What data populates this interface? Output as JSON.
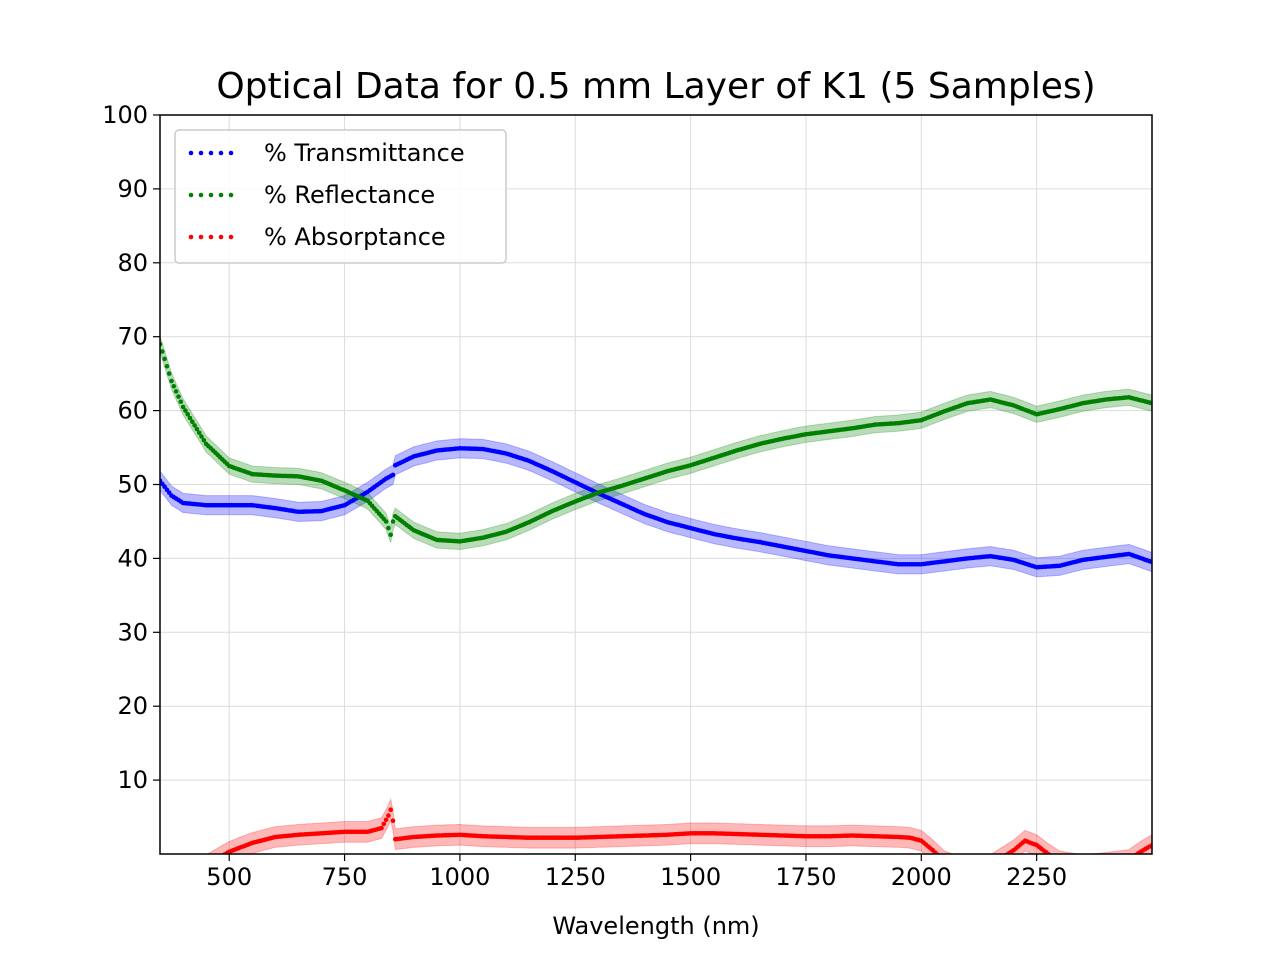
{
  "chart_data": {
    "type": "line",
    "title": "Optical Data for 0.5 mm Layer of K1 (5 Samples)",
    "xlabel": "Wavelength (nm)",
    "ylabel": "",
    "xlim": [
      350,
      2500
    ],
    "ylim": [
      0,
      100
    ],
    "x_ticks": [
      500,
      750,
      1000,
      1250,
      1500,
      1750,
      2000,
      2250
    ],
    "y_ticks": [
      10,
      20,
      30,
      40,
      50,
      60,
      70,
      80,
      90,
      100
    ],
    "grid": true,
    "legend_position": "top-left",
    "series": [
      {
        "name": "% Transmittance",
        "color": "#0000ff",
        "band_halfwidth": 1.3,
        "x": [
          350,
          375,
          400,
          450,
          500,
          550,
          600,
          650,
          700,
          750,
          800,
          840,
          855,
          860,
          900,
          950,
          1000,
          1050,
          1100,
          1150,
          1200,
          1250,
          1300,
          1350,
          1400,
          1450,
          1500,
          1550,
          1600,
          1650,
          1700,
          1750,
          1800,
          1850,
          1900,
          1950,
          2000,
          2050,
          2100,
          2150,
          2200,
          2250,
          2300,
          2350,
          2400,
          2450,
          2500
        ],
        "y": [
          50.5,
          48.5,
          47.5,
          47.2,
          47.2,
          47.2,
          46.8,
          46.3,
          46.4,
          47.2,
          49,
          50.8,
          51.3,
          52.6,
          53.8,
          54.6,
          54.9,
          54.8,
          54.2,
          53.2,
          51.8,
          50.3,
          48.8,
          47.4,
          46,
          44.9,
          44.1,
          43.3,
          42.7,
          42.2,
          41.6,
          41,
          40.4,
          40,
          39.6,
          39.2,
          39.2,
          39.6,
          40,
          40.3,
          39.8,
          38.8,
          39,
          39.8,
          40.2,
          40.6,
          39.5
        ]
      },
      {
        "name": "% Reflectance",
        "color": "#008000",
        "band_halfwidth": 1.1,
        "x": [
          350,
          375,
          400,
          450,
          500,
          550,
          600,
          650,
          700,
          750,
          800,
          840,
          850,
          855,
          860,
          900,
          950,
          1000,
          1050,
          1100,
          1150,
          1200,
          1250,
          1300,
          1350,
          1400,
          1450,
          1500,
          1550,
          1600,
          1650,
          1700,
          1750,
          1800,
          1850,
          1900,
          1950,
          2000,
          2050,
          2100,
          2150,
          2200,
          2250,
          2300,
          2350,
          2400,
          2450,
          2500
        ],
        "y": [
          69,
          64,
          60.5,
          55.5,
          52.5,
          51.4,
          51.2,
          51.1,
          50.5,
          49.2,
          47.8,
          45,
          43.2,
          45,
          45.7,
          43.8,
          42.5,
          42.3,
          42.8,
          43.6,
          44.9,
          46.4,
          47.7,
          48.9,
          49.8,
          50.8,
          51.8,
          52.6,
          53.6,
          54.6,
          55.5,
          56.2,
          56.8,
          57.2,
          57.6,
          58.1,
          58.3,
          58.7,
          59.9,
          61,
          61.5,
          60.7,
          59.5,
          60.2,
          61,
          61.5,
          61.8,
          61
        ]
      },
      {
        "name": "% Absorptance",
        "color": "#ff0000",
        "band_halfwidth": 1.4,
        "x": [
          350,
          400,
          450,
          500,
          550,
          600,
          650,
          700,
          750,
          800,
          830,
          845,
          850,
          855,
          860,
          900,
          950,
          1000,
          1050,
          1100,
          1150,
          1200,
          1250,
          1300,
          1350,
          1400,
          1450,
          1500,
          1550,
          1600,
          1650,
          1700,
          1750,
          1800,
          1850,
          1900,
          1950,
          1975,
          2000,
          2025,
          2050,
          2100,
          2150,
          2175,
          2200,
          2225,
          2250,
          2275,
          2300,
          2350,
          2400,
          2450,
          2475,
          2500
        ],
        "y": [
          -6,
          -4,
          -1.5,
          0.3,
          1.5,
          2.3,
          2.6,
          2.8,
          3,
          3,
          3.5,
          5.2,
          6,
          4.5,
          2,
          2.3,
          2.5,
          2.6,
          2.4,
          2.3,
          2.2,
          2.2,
          2.2,
          2.3,
          2.4,
          2.5,
          2.6,
          2.8,
          2.8,
          2.7,
          2.6,
          2.5,
          2.4,
          2.4,
          2.5,
          2.4,
          2.3,
          2.2,
          1.8,
          0.5,
          -1,
          -2,
          -1.5,
          -0.5,
          0.5,
          1.8,
          1.2,
          0,
          -1,
          -1.5,
          -1.2,
          -0.8,
          0.3,
          1.2
        ]
      }
    ]
  }
}
